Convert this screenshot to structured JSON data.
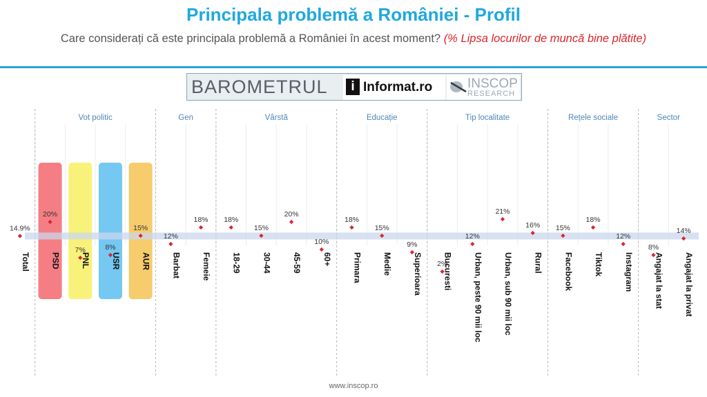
{
  "header": {
    "title": "Principala problemă a României - Profil",
    "subtitle": "Care considerați că este principala problemă a României în acest moment?",
    "subtitle_highlight": "(% Lipsa locurilor de muncă bine plătite)"
  },
  "logo": {
    "barometrul": "BAROMETRUL",
    "informat_i": "i",
    "informat": "Informat.ro",
    "inscop": "INSCOP",
    "research": "RESEARCH"
  },
  "footer": {
    "url": "www.inscop.ro"
  },
  "chart_data": {
    "type": "scatter",
    "title": "Principala problemă a României - Profil",
    "unit": "%",
    "ylim": [
      0,
      40
    ],
    "average": 14.9,
    "groups": [
      {
        "label": "Vot politic",
        "start": 1,
        "end": 4
      },
      {
        "label": "Gen",
        "start": 5,
        "end": 6
      },
      {
        "label": "Vârstă",
        "start": 7,
        "end": 10
      },
      {
        "label": "Educație",
        "start": 11,
        "end": 13
      },
      {
        "label": "Tip localitate",
        "start": 14,
        "end": 17
      },
      {
        "label": "Rețele sociale",
        "start": 18,
        "end": 20
      },
      {
        "label": "Sector",
        "start": 21,
        "end": 22
      }
    ],
    "categories": [
      "Total",
      "PSD",
      "PNL",
      "USR",
      "AUR",
      "Barbat",
      "Femeie",
      "18-29",
      "30-44",
      "45-59",
      "60+",
      "Primara",
      "Medie",
      "Superioara",
      "Bucuresti",
      "Urban, peste 90 mii loc",
      "Urban, sub 90 mii loc",
      "Rural",
      "Facebook",
      "Tiktok",
      "Instagram",
      "Angajat la stat",
      "Angajat la privat"
    ],
    "values": [
      14.9,
      20,
      7,
      8,
      15,
      12,
      18,
      18,
      15,
      20,
      10,
      18,
      15,
      9,
      2,
      12,
      21,
      16,
      15,
      18,
      12,
      8,
      14
    ],
    "labels": [
      "14.9%",
      "20%",
      "7%",
      "8%",
      "15%",
      "12%",
      "18%",
      "18%",
      "15%",
      "20%",
      "10%",
      "18%",
      "15%",
      "9%",
      "2%",
      "12%",
      "21%",
      "16%",
      "15%",
      "18%",
      "12%",
      "8%",
      "14%"
    ],
    "party_colors": {
      "PSD": "#f47e83",
      "PNL": "#f8f27a",
      "USR": "#74c8f2",
      "AUR": "#f6cc6c"
    },
    "marker_color": "#d9262b",
    "band_color": "#c9d7ec",
    "grid": true
  }
}
